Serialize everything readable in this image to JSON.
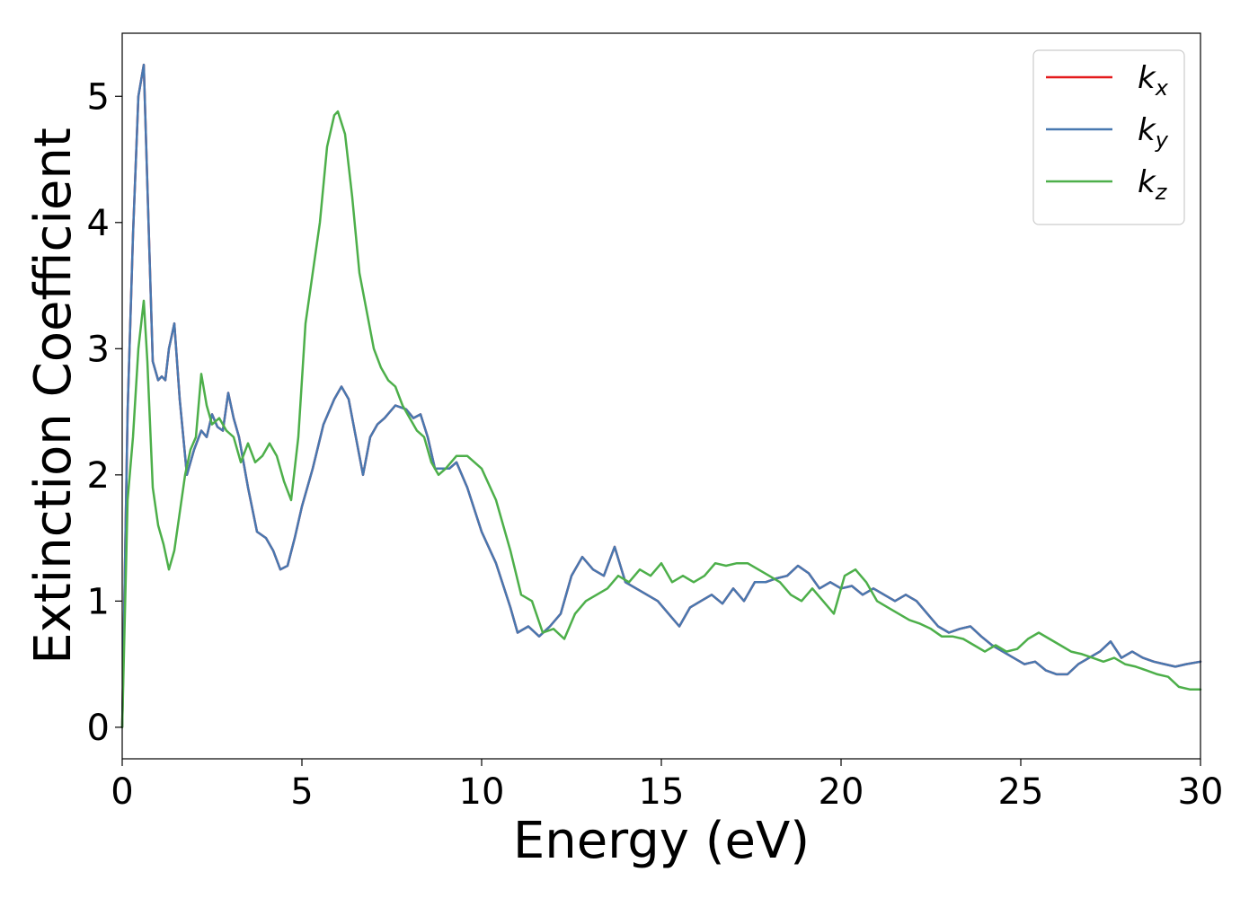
{
  "chart_data": {
    "type": "line",
    "xlabel": "Energy (eV)",
    "ylabel": "Extinction Coefficient",
    "xlim": [
      0,
      30
    ],
    "ylim": [
      -0.25,
      5.5
    ],
    "xticks": [
      0,
      5,
      10,
      15,
      20,
      25,
      30
    ],
    "yticks": [
      0,
      1,
      2,
      3,
      4,
      5
    ],
    "grid": false,
    "legend_position": "top-right",
    "series": [
      {
        "name": "kx",
        "symbol": "k",
        "subscript": "x",
        "color": "#e41a1c",
        "x": [
          0,
          0.15,
          0.3,
          0.45,
          0.6,
          0.7,
          0.85,
          1.0,
          1.1,
          1.2,
          1.3,
          1.45,
          1.6,
          1.8,
          2.0,
          2.2,
          2.35,
          2.5,
          2.65,
          2.8,
          2.95,
          3.1,
          3.25,
          3.5,
          3.75,
          4.0,
          4.2,
          4.4,
          4.6,
          4.8,
          5.0,
          5.3,
          5.6,
          5.9,
          6.1,
          6.3,
          6.5,
          6.7,
          6.9,
          7.1,
          7.3,
          7.6,
          7.9,
          8.1,
          8.3,
          8.5,
          8.7,
          8.9,
          9.1,
          9.3,
          9.6,
          10.0,
          10.4,
          10.8,
          11.0,
          11.3,
          11.6,
          11.9,
          12.2,
          12.5,
          12.8,
          13.1,
          13.4,
          13.7,
          14.0,
          14.3,
          14.6,
          14.9,
          15.2,
          15.5,
          15.8,
          16.1,
          16.4,
          16.7,
          17.0,
          17.3,
          17.6,
          17.9,
          18.2,
          18.5,
          18.8,
          19.1,
          19.4,
          19.7,
          20.0,
          20.3,
          20.6,
          20.9,
          21.2,
          21.5,
          21.8,
          22.1,
          22.4,
          22.7,
          23.0,
          23.3,
          23.6,
          23.9,
          24.2,
          24.5,
          24.8,
          25.1,
          25.4,
          25.7,
          26.0,
          26.3,
          26.6,
          26.9,
          27.2,
          27.5,
          27.8,
          28.1,
          28.4,
          28.7,
          29.0,
          29.3,
          29.6,
          30.0
        ],
        "y": [
          0,
          2.5,
          3.9,
          5.0,
          5.25,
          4.3,
          2.9,
          2.75,
          2.78,
          2.75,
          3.0,
          3.2,
          2.6,
          2.0,
          2.2,
          2.35,
          2.3,
          2.48,
          2.38,
          2.35,
          2.65,
          2.45,
          2.3,
          1.9,
          1.55,
          1.5,
          1.4,
          1.25,
          1.28,
          1.5,
          1.75,
          2.05,
          2.4,
          2.6,
          2.7,
          2.6,
          2.3,
          2.0,
          2.3,
          2.4,
          2.45,
          2.55,
          2.52,
          2.45,
          2.48,
          2.3,
          2.05,
          2.05,
          2.05,
          2.1,
          1.9,
          1.55,
          1.3,
          0.95,
          0.75,
          0.8,
          0.72,
          0.8,
          0.9,
          1.2,
          1.35,
          1.25,
          1.2,
          1.43,
          1.15,
          1.1,
          1.05,
          1.0,
          0.9,
          0.8,
          0.95,
          1.0,
          1.05,
          0.98,
          1.1,
          1.0,
          1.15,
          1.15,
          1.18,
          1.2,
          1.28,
          1.22,
          1.1,
          1.15,
          1.1,
          1.12,
          1.05,
          1.1,
          1.05,
          1.0,
          1.05,
          1.0,
          0.9,
          0.8,
          0.75,
          0.78,
          0.8,
          0.72,
          0.65,
          0.6,
          0.55,
          0.5,
          0.52,
          0.45,
          0.42,
          0.42,
          0.5,
          0.55,
          0.6,
          0.68,
          0.55,
          0.6,
          0.55,
          0.52,
          0.5,
          0.48,
          0.5,
          0.52
        ]
      },
      {
        "name": "ky",
        "symbol": "k",
        "subscript": "y",
        "color": "#4878b0",
        "x": [
          0,
          0.15,
          0.3,
          0.45,
          0.6,
          0.7,
          0.85,
          1.0,
          1.1,
          1.2,
          1.3,
          1.45,
          1.6,
          1.8,
          2.0,
          2.2,
          2.35,
          2.5,
          2.65,
          2.8,
          2.95,
          3.1,
          3.25,
          3.5,
          3.75,
          4.0,
          4.2,
          4.4,
          4.6,
          4.8,
          5.0,
          5.3,
          5.6,
          5.9,
          6.1,
          6.3,
          6.5,
          6.7,
          6.9,
          7.1,
          7.3,
          7.6,
          7.9,
          8.1,
          8.3,
          8.5,
          8.7,
          8.9,
          9.1,
          9.3,
          9.6,
          10.0,
          10.4,
          10.8,
          11.0,
          11.3,
          11.6,
          11.9,
          12.2,
          12.5,
          12.8,
          13.1,
          13.4,
          13.7,
          14.0,
          14.3,
          14.6,
          14.9,
          15.2,
          15.5,
          15.8,
          16.1,
          16.4,
          16.7,
          17.0,
          17.3,
          17.6,
          17.9,
          18.2,
          18.5,
          18.8,
          19.1,
          19.4,
          19.7,
          20.0,
          20.3,
          20.6,
          20.9,
          21.2,
          21.5,
          21.8,
          22.1,
          22.4,
          22.7,
          23.0,
          23.3,
          23.6,
          23.9,
          24.2,
          24.5,
          24.8,
          25.1,
          25.4,
          25.7,
          26.0,
          26.3,
          26.6,
          26.9,
          27.2,
          27.5,
          27.8,
          28.1,
          28.4,
          28.7,
          29.0,
          29.3,
          29.6,
          30.0
        ],
        "y": [
          0,
          2.5,
          3.9,
          5.0,
          5.25,
          4.3,
          2.9,
          2.75,
          2.78,
          2.75,
          3.0,
          3.2,
          2.6,
          2.0,
          2.2,
          2.35,
          2.3,
          2.48,
          2.38,
          2.35,
          2.65,
          2.45,
          2.3,
          1.9,
          1.55,
          1.5,
          1.4,
          1.25,
          1.28,
          1.5,
          1.75,
          2.05,
          2.4,
          2.6,
          2.7,
          2.6,
          2.3,
          2.0,
          2.3,
          2.4,
          2.45,
          2.55,
          2.52,
          2.45,
          2.48,
          2.3,
          2.05,
          2.05,
          2.05,
          2.1,
          1.9,
          1.55,
          1.3,
          0.95,
          0.75,
          0.8,
          0.72,
          0.8,
          0.9,
          1.2,
          1.35,
          1.25,
          1.2,
          1.43,
          1.15,
          1.1,
          1.05,
          1.0,
          0.9,
          0.8,
          0.95,
          1.0,
          1.05,
          0.98,
          1.1,
          1.0,
          1.15,
          1.15,
          1.18,
          1.2,
          1.28,
          1.22,
          1.1,
          1.15,
          1.1,
          1.12,
          1.05,
          1.1,
          1.05,
          1.0,
          1.05,
          1.0,
          0.9,
          0.8,
          0.75,
          0.78,
          0.8,
          0.72,
          0.65,
          0.6,
          0.55,
          0.5,
          0.52,
          0.45,
          0.42,
          0.42,
          0.5,
          0.55,
          0.6,
          0.68,
          0.55,
          0.6,
          0.55,
          0.52,
          0.5,
          0.48,
          0.5,
          0.52
        ]
      },
      {
        "name": "kz",
        "symbol": "k",
        "subscript": "z",
        "color": "#4daf4a",
        "x": [
          0,
          0.15,
          0.3,
          0.45,
          0.6,
          0.7,
          0.85,
          1.0,
          1.15,
          1.3,
          1.45,
          1.6,
          1.75,
          1.9,
          2.05,
          2.2,
          2.35,
          2.5,
          2.7,
          2.9,
          3.1,
          3.3,
          3.5,
          3.7,
          3.9,
          4.1,
          4.3,
          4.5,
          4.7,
          4.9,
          5.1,
          5.3,
          5.5,
          5.7,
          5.9,
          6.0,
          6.2,
          6.4,
          6.6,
          6.8,
          7.0,
          7.2,
          7.4,
          7.6,
          7.8,
          8.0,
          8.2,
          8.4,
          8.6,
          8.8,
          9.0,
          9.3,
          9.6,
          10.0,
          10.4,
          10.8,
          11.1,
          11.4,
          11.7,
          12.0,
          12.3,
          12.6,
          12.9,
          13.2,
          13.5,
          13.8,
          14.1,
          14.4,
          14.7,
          15.0,
          15.3,
          15.6,
          15.9,
          16.2,
          16.5,
          16.8,
          17.1,
          17.4,
          17.7,
          18.0,
          18.3,
          18.6,
          18.9,
          19.2,
          19.5,
          19.8,
          20.1,
          20.4,
          20.7,
          21.0,
          21.3,
          21.6,
          21.9,
          22.2,
          22.5,
          22.8,
          23.1,
          23.4,
          23.7,
          24.0,
          24.3,
          24.6,
          24.9,
          25.2,
          25.5,
          25.8,
          26.1,
          26.4,
          26.7,
          27.0,
          27.3,
          27.6,
          27.9,
          28.2,
          28.5,
          28.8,
          29.1,
          29.4,
          29.7,
          30.0
        ],
        "y": [
          0,
          1.8,
          2.3,
          3.0,
          3.38,
          2.9,
          1.9,
          1.6,
          1.45,
          1.25,
          1.4,
          1.7,
          2.0,
          2.2,
          2.3,
          2.8,
          2.55,
          2.4,
          2.45,
          2.35,
          2.3,
          2.1,
          2.25,
          2.1,
          2.15,
          2.25,
          2.15,
          1.95,
          1.8,
          2.3,
          3.2,
          3.6,
          4.0,
          4.6,
          4.85,
          4.88,
          4.7,
          4.2,
          3.6,
          3.3,
          3.0,
          2.85,
          2.75,
          2.7,
          2.55,
          2.45,
          2.35,
          2.3,
          2.1,
          2.0,
          2.05,
          2.15,
          2.15,
          2.05,
          1.8,
          1.4,
          1.05,
          1.0,
          0.75,
          0.78,
          0.7,
          0.9,
          1.0,
          1.05,
          1.1,
          1.2,
          1.15,
          1.25,
          1.2,
          1.3,
          1.15,
          1.2,
          1.15,
          1.2,
          1.3,
          1.28,
          1.3,
          1.3,
          1.25,
          1.2,
          1.15,
          1.05,
          1.0,
          1.1,
          1.0,
          0.9,
          1.2,
          1.25,
          1.15,
          1.0,
          0.95,
          0.9,
          0.85,
          0.82,
          0.78,
          0.72,
          0.72,
          0.7,
          0.65,
          0.6,
          0.65,
          0.6,
          0.62,
          0.7,
          0.75,
          0.7,
          0.65,
          0.6,
          0.58,
          0.55,
          0.52,
          0.55,
          0.5,
          0.48,
          0.45,
          0.42,
          0.4,
          0.32,
          0.3,
          0.3
        ]
      }
    ]
  }
}
